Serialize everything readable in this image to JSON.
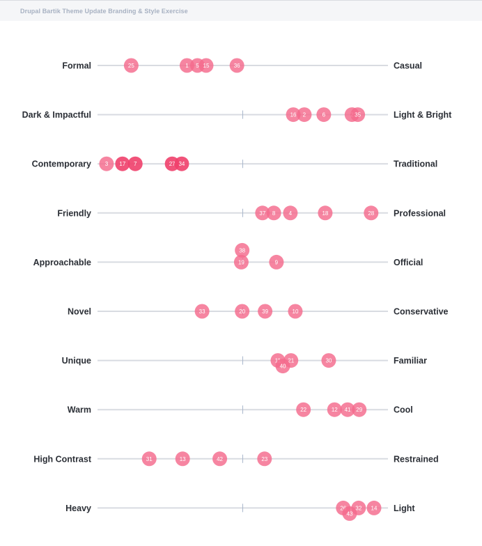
{
  "header": {
    "title": "Drupal Bartik Theme Update Branding & Style Exercise"
  },
  "colors": {
    "dot": "#f46a8c",
    "dot_dark": "#f0406c",
    "line": "#d8dbe1",
    "tick": "#a9b7cc"
  },
  "chart_data": {
    "type": "scatter",
    "title": "",
    "xlim": [
      0,
      100
    ],
    "center_value": 50,
    "rows": [
      {
        "left": "Formal",
        "right": "Casual",
        "center_tick": false,
        "points": [
          {
            "id": "25",
            "x": 11.6
          },
          {
            "id": "1",
            "x": 30.8
          },
          {
            "id": "5",
            "x": 34.4
          },
          {
            "id": "15",
            "x": 37.4
          },
          {
            "id": "36",
            "x": 48.0
          }
        ]
      },
      {
        "left": "Dark & Impactful",
        "right": "Light & Bright",
        "center_tick": true,
        "points": [
          {
            "id": "16",
            "x": 67.4
          },
          {
            "id": "2",
            "x": 71.2
          },
          {
            "id": "6",
            "x": 77.9
          },
          {
            "id": "2",
            "x": 87.6
          },
          {
            "id": "35",
            "x": 89.6
          }
        ]
      },
      {
        "left": "Contemporary",
        "right": "Traditional",
        "center_tick": true,
        "points": [
          {
            "id": "3",
            "x": 3.1
          },
          {
            "id": "17",
            "x": 8.6,
            "strong": true
          },
          {
            "id": "7",
            "x": 13.0,
            "strong": true
          },
          {
            "id": "27",
            "x": 25.7,
            "strong": true
          },
          {
            "id": "34",
            "x": 29.0,
            "strong": true
          }
        ]
      },
      {
        "left": "Friendly",
        "right": "Professional",
        "center_tick": true,
        "points": [
          {
            "id": "37",
            "x": 56.8
          },
          {
            "id": "8",
            "x": 60.7
          },
          {
            "id": "4",
            "x": 66.4
          },
          {
            "id": "18",
            "x": 78.4
          },
          {
            "id": "28",
            "x": 94.2
          }
        ]
      },
      {
        "left": "Approachable",
        "right": "Official",
        "center_tick": true,
        "points": [
          {
            "id": "38",
            "x": 49.8,
            "dy": -17
          },
          {
            "id": "19",
            "x": 49.5
          },
          {
            "id": "9",
            "x": 61.6
          }
        ]
      },
      {
        "left": "Novel",
        "right": "Conservative",
        "center_tick": true,
        "points": [
          {
            "id": "33",
            "x": 36.0
          },
          {
            "id": "20",
            "x": 49.8
          },
          {
            "id": "39",
            "x": 57.7
          },
          {
            "id": "10",
            "x": 68.1
          }
        ]
      },
      {
        "left": "Unique",
        "right": "Familiar",
        "center_tick": true,
        "points": [
          {
            "id": "11",
            "x": 62.1
          },
          {
            "id": "21",
            "x": 66.6
          },
          {
            "id": "40",
            "x": 63.8,
            "dy": 8
          },
          {
            "id": "30",
            "x": 79.6
          }
        ]
      },
      {
        "left": "Warm",
        "right": "Cool",
        "center_tick": true,
        "points": [
          {
            "id": "22",
            "x": 70.9
          },
          {
            "id": "12",
            "x": 81.6
          },
          {
            "id": "41",
            "x": 86.1
          },
          {
            "id": "29",
            "x": 90.1
          }
        ]
      },
      {
        "left": "High Contrast",
        "right": "Restrained",
        "center_tick": true,
        "points": [
          {
            "id": "31",
            "x": 17.8
          },
          {
            "id": "13",
            "x": 29.3
          },
          {
            "id": "42",
            "x": 42.1
          },
          {
            "id": "23",
            "x": 57.5
          }
        ]
      },
      {
        "left": "Heavy",
        "right": "Light",
        "center_tick": true,
        "points": [
          {
            "id": "26",
            "x": 84.6
          },
          {
            "id": "32",
            "x": 89.9
          },
          {
            "id": "14",
            "x": 95.2
          },
          {
            "id": "43",
            "x": 86.8,
            "dy": 8
          }
        ]
      }
    ]
  }
}
